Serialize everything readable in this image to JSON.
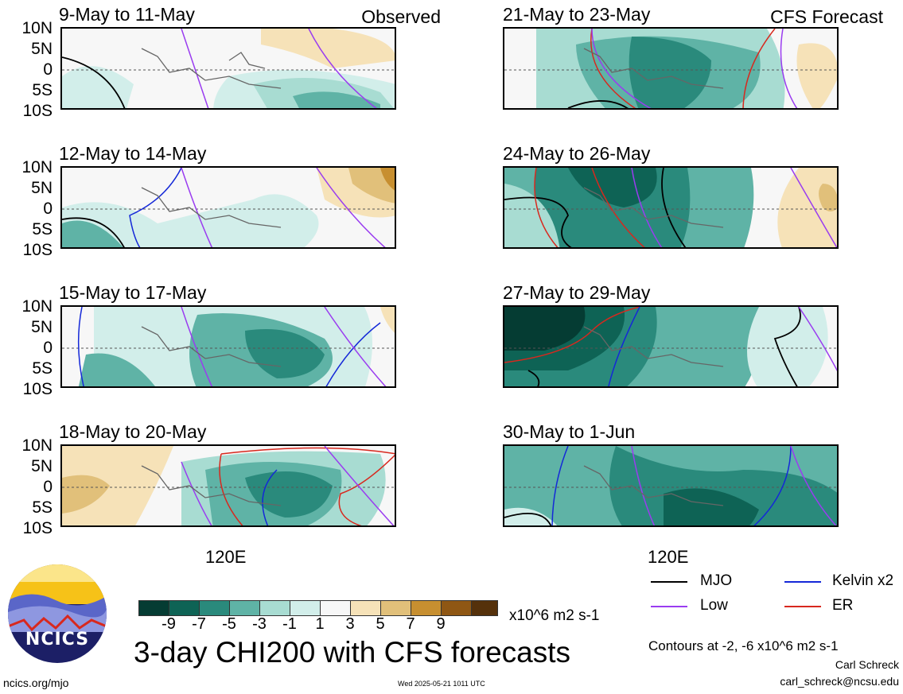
{
  "header": {
    "observed_label": "Observed",
    "forecast_label": "CFS Forecast"
  },
  "lat_labels": [
    "10N",
    "5N",
    "0",
    "5S",
    "10S"
  ],
  "x_axis_label": "120E",
  "panels_left": [
    {
      "title": "9-May to 11-May"
    },
    {
      "title": "12-May to 14-May"
    },
    {
      "title": "15-May to 17-May"
    },
    {
      "title": "18-May to 20-May"
    }
  ],
  "panels_right": [
    {
      "title": "21-May to 23-May"
    },
    {
      "title": "24-May to 26-May"
    },
    {
      "title": "27-May to 29-May"
    },
    {
      "title": "30-May to 1-Jun"
    }
  ],
  "colorbar": {
    "ticks": [
      "-9",
      "-7",
      "-5",
      "-3",
      "-1",
      "1",
      "3",
      "5",
      "7",
      "9"
    ],
    "units": "x10^6 m2 s-1",
    "colors": [
      "#053c33",
      "#0e6355",
      "#2a8a7c",
      "#5fb3a6",
      "#a8dcd2",
      "#d2eeea",
      "#f7f7f7",
      "#f6e2b8",
      "#e1c07a",
      "#c78f30",
      "#8f5714",
      "#55310b"
    ]
  },
  "legend": {
    "items": [
      {
        "label": "MJO",
        "color": "#000000"
      },
      {
        "label": "Kelvin x2",
        "color": "#1428d8"
      },
      {
        "label": "Low",
        "color": "#9a3cf0"
      },
      {
        "label": "ER",
        "color": "#d8281e"
      }
    ],
    "contours_note": "Contours at -2, -6 x10^6 m2 s-1"
  },
  "logo": {
    "text": "NCICS"
  },
  "title": "3-day CHI200 with CFS forecasts",
  "footer": {
    "url": "ncics.org/mjo",
    "timestamp": "Wed 2025-05-21 1011 UTC",
    "author": "Carl Schreck",
    "email": "carl_schreck@ncsu.edu"
  }
}
